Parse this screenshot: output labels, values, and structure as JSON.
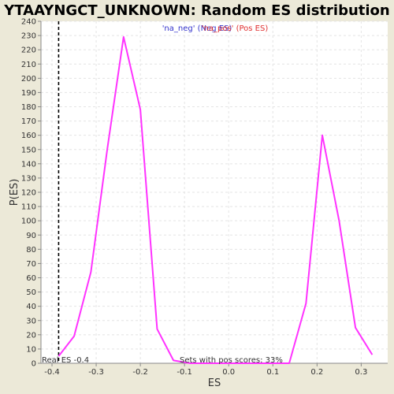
{
  "chart_data": {
    "type": "line",
    "title": "YTAAYNGCT_UNKNOWN: Random ES distribution",
    "xlabel": "ES",
    "ylabel": "P(ES)",
    "xlim": [
      -0.425,
      0.36
    ],
    "ylim": [
      0,
      240
    ],
    "xticks": [
      -0.4,
      -0.3,
      -0.2,
      -0.1,
      0.0,
      0.1,
      0.2,
      0.3
    ],
    "xtick_labels": [
      "-0.4",
      "-0.3",
      "-0.2",
      "-0.1",
      "0.0",
      "0.1",
      "0.2",
      "0.3"
    ],
    "yticks": [
      0,
      10,
      20,
      30,
      40,
      50,
      60,
      70,
      80,
      90,
      100,
      110,
      120,
      130,
      140,
      150,
      160,
      170,
      180,
      190,
      200,
      210,
      220,
      230,
      240
    ],
    "grid": true,
    "legend": {
      "placement": "top-center",
      "entries": [
        {
          "label": "'na_neg' (Neg ES)",
          "color": "#3333cc"
        },
        {
          "label": "'na_pos' (Pos ES)",
          "color": "#e03030"
        }
      ]
    },
    "series": [
      {
        "color": "#ff33ff",
        "x": [
          -0.385,
          -0.35,
          -0.312,
          -0.275,
          -0.238,
          -0.2,
          -0.162,
          -0.125,
          -0.087,
          0.1,
          0.137,
          0.175,
          0.212,
          0.25,
          0.287,
          0.325
        ],
        "y": [
          5,
          19,
          64,
          150,
          229,
          178,
          24,
          2,
          0,
          0,
          0,
          42,
          160,
          100,
          25,
          6
        ]
      }
    ],
    "real_es": {
      "value": -0.385,
      "label": "Real ES -0.4"
    },
    "annotation": "Sets with pos scores: 33%"
  },
  "colors": {
    "background": "#ece9d8",
    "plot_background": "#ffffff",
    "grid": "#e4e4e4",
    "axis": "#888888",
    "real_es_line": "#000000"
  }
}
